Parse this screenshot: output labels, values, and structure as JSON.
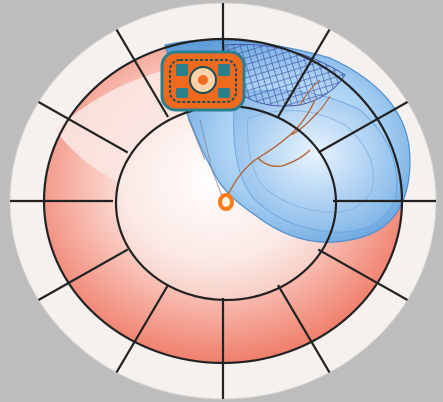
{
  "diagram": {
    "spoke_count": 12,
    "colors": {
      "background": "#bdbdbd",
      "outer_ring": "#f4f1ee",
      "rim": "#222222",
      "pink_fill": "#f07a66",
      "pink_light": "#fbe3de",
      "blue_lobe": "#9cc8ef",
      "blue_dark": "#4f8fd0",
      "blue_net": "#3b4aa0",
      "nerve_line": "#b5602e",
      "center_dot": "#ff7b1c",
      "icon_orange": "#f06a1e",
      "icon_teal": "#2a7f8f"
    },
    "icons": [
      "mandala-emblem-icon",
      "ganglion-center-icon",
      "nerve-network-icon"
    ]
  }
}
